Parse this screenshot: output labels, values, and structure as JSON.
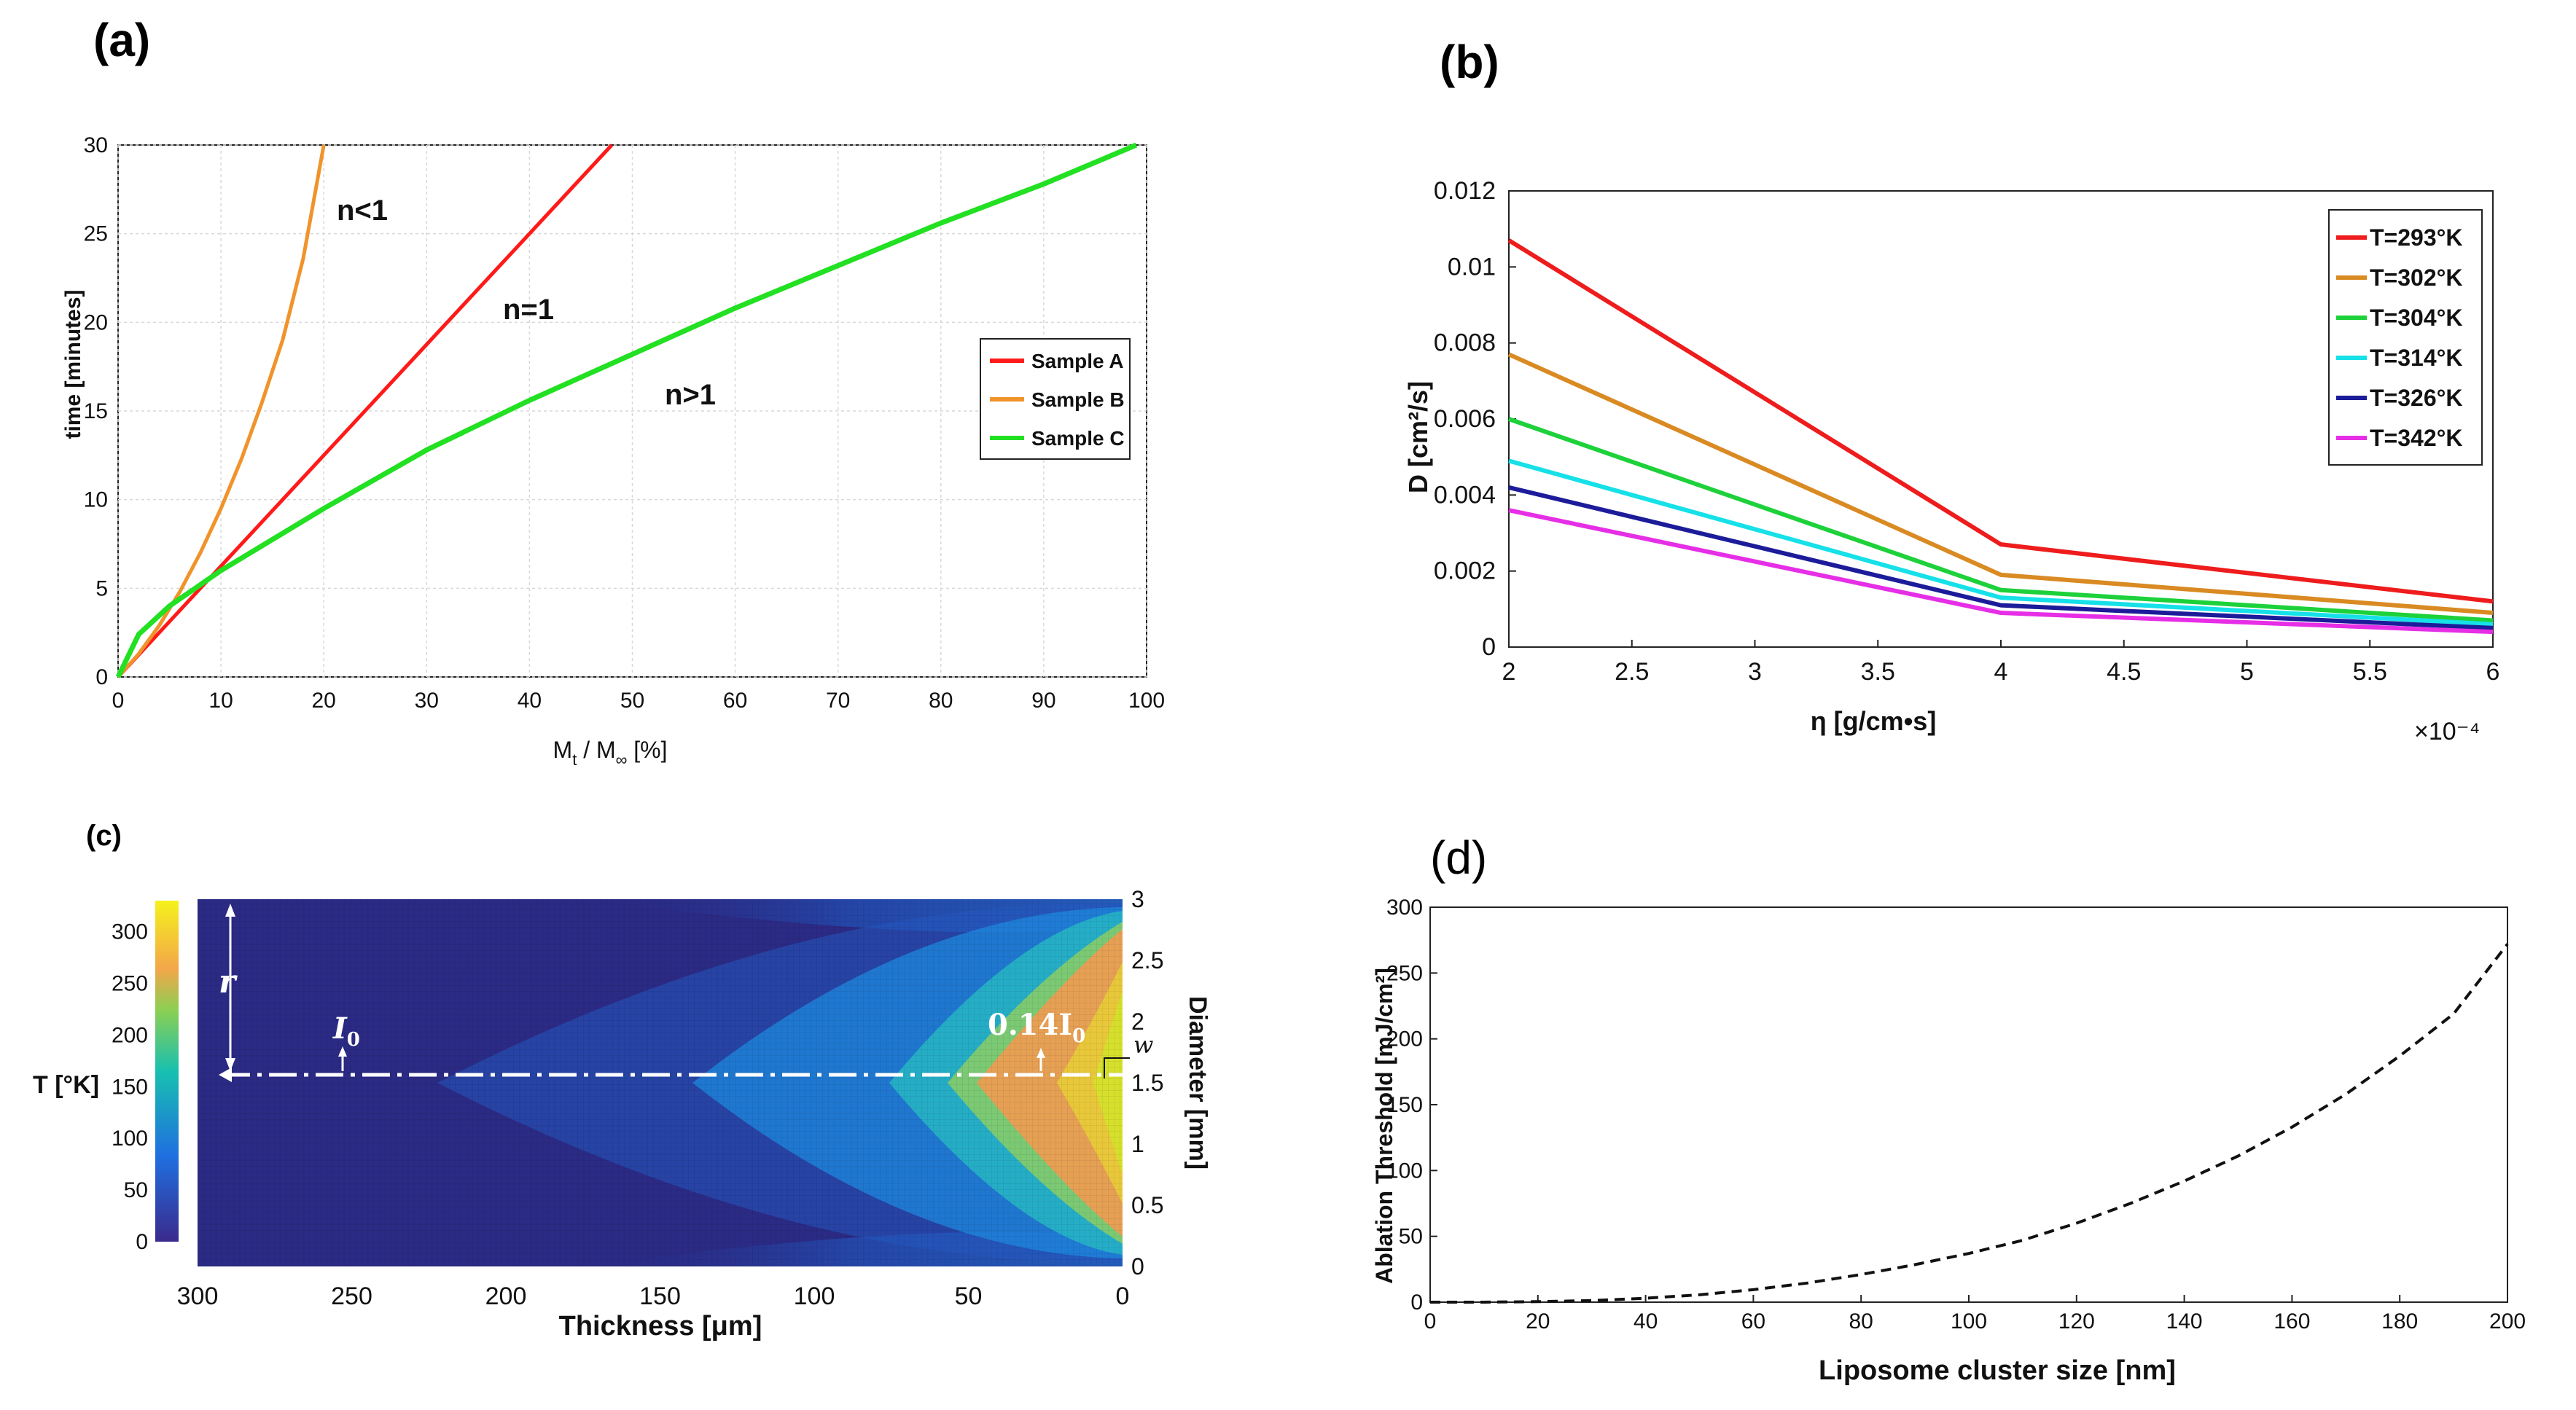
{
  "panels": {
    "a_label": "(a)",
    "b_label": "(b)",
    "c_label": "(c)",
    "d_label": "(d)"
  },
  "chart_data": [
    {
      "id": "a",
      "type": "line",
      "xlabel": "M_t / M_∞ [%]",
      "ylabel": "time [minutes]",
      "xlim": [
        0,
        100
      ],
      "ylim": [
        0,
        30
      ],
      "xticks": [
        0,
        10,
        20,
        30,
        40,
        50,
        60,
        70,
        80,
        90,
        100
      ],
      "yticks": [
        0,
        5,
        10,
        15,
        20,
        25,
        30
      ],
      "legend_position": "right",
      "series": [
        {
          "name": "Sample A",
          "color": "#ff1a1a",
          "x": [
            0,
            10,
            20,
            30,
            40,
            48
          ],
          "y": [
            0,
            6.25,
            12.5,
            18.75,
            25,
            30
          ]
        },
        {
          "name": "Sample B",
          "color": "#f0932b",
          "x": [
            0,
            2,
            4,
            6,
            8,
            10,
            12,
            14,
            16,
            18,
            20
          ],
          "y": [
            0,
            1.3,
            2.9,
            4.8,
            7.0,
            9.5,
            12.3,
            15.5,
            19.0,
            23.6,
            30
          ]
        },
        {
          "name": "Sample C",
          "color": "#22e022",
          "x": [
            0,
            2,
            5,
            10,
            20,
            30,
            40,
            50,
            60,
            70,
            80,
            90,
            99
          ],
          "y": [
            0,
            2.4,
            4.0,
            6.0,
            9.5,
            12.8,
            15.6,
            18.2,
            20.8,
            23.2,
            25.6,
            27.8,
            30
          ]
        }
      ],
      "annotations": [
        "n<1",
        "n=1",
        "n>1"
      ]
    },
    {
      "id": "b",
      "type": "line",
      "xlabel": "η [g/cm•s]",
      "ylabel": "D [cm²/s]",
      "x_multiplier": "×10⁻⁴",
      "xlim": [
        2,
        6
      ],
      "ylim": [
        0,
        0.012
      ],
      "xticks": [
        "2",
        "2.5",
        "3",
        "3.5",
        "4",
        "4.5",
        "5",
        "5.5",
        "6"
      ],
      "yticks": [
        "0",
        "0.002",
        "0.004",
        "0.006",
        "0.008",
        "0.01",
        "0.012"
      ],
      "legend_position": "top-right",
      "x": [
        2,
        4,
        6
      ],
      "series": [
        {
          "name": "T=293°K",
          "color": "#ee1c1c",
          "values": [
            0.0107,
            0.0027,
            0.0012
          ]
        },
        {
          "name": "T=302°K",
          "color": "#d98a22",
          "values": [
            0.0077,
            0.0019,
            0.0009
          ]
        },
        {
          "name": "T=304°K",
          "color": "#1dd13a",
          "values": [
            0.006,
            0.0015,
            0.0007
          ]
        },
        {
          "name": "T=314°K",
          "color": "#16e0e8",
          "values": [
            0.0049,
            0.0013,
            0.0006
          ]
        },
        {
          "name": "T=326°K",
          "color": "#1c1c9a",
          "values": [
            0.0042,
            0.0011,
            0.0005
          ]
        },
        {
          "name": "T=342°K",
          "color": "#e62ee6",
          "values": [
            0.0036,
            0.0009,
            0.0004
          ]
        }
      ]
    },
    {
      "id": "c",
      "type": "heatmap",
      "xlabel": "Thickness [μm]",
      "ylabel_right": "Diameter [mm]",
      "colorbar_label": "T [°K]",
      "xlim": [
        300,
        0
      ],
      "ylim": [
        0,
        3
      ],
      "xticks": [
        "300",
        "250",
        "200",
        "150",
        "100",
        "50",
        "0"
      ],
      "yticks_right": [
        "0",
        "0.5",
        "1",
        "1.5",
        "2",
        "2.5",
        "3"
      ],
      "colorbar_ticks": [
        "0",
        "50",
        "100",
        "150",
        "200",
        "250",
        "300"
      ],
      "colorbar_range": [
        0,
        330
      ],
      "annotations": {
        "r": "r",
        "I0": "I",
        "I0_sub": "0",
        "I014": "0.14I",
        "I014_sub": "0",
        "w": "w"
      }
    },
    {
      "id": "d",
      "type": "line",
      "xlabel": "Liposome cluster size [nm]",
      "ylabel": "Ablation Threshold [mJ/cm²]",
      "xlim": [
        0,
        200
      ],
      "ylim": [
        0,
        300
      ],
      "xticks": [
        0,
        20,
        40,
        60,
        80,
        100,
        120,
        140,
        160,
        180,
        200
      ],
      "yticks": [
        0,
        50,
        100,
        150,
        200,
        250,
        300
      ],
      "series": [
        {
          "name": "",
          "color": "#111111",
          "style": "dashed",
          "x": [
            0,
            10,
            20,
            30,
            40,
            50,
            60,
            70,
            80,
            90,
            100,
            110,
            120,
            130,
            140,
            150,
            160,
            170,
            180,
            190,
            200
          ],
          "y": [
            0,
            0.03,
            0.4,
            1.2,
            3.0,
            5.6,
            9.5,
            14.5,
            21,
            28.5,
            37,
            47,
            60,
            75,
            92,
            111,
            133,
            158,
            187,
            219,
            272
          ]
        }
      ]
    }
  ]
}
